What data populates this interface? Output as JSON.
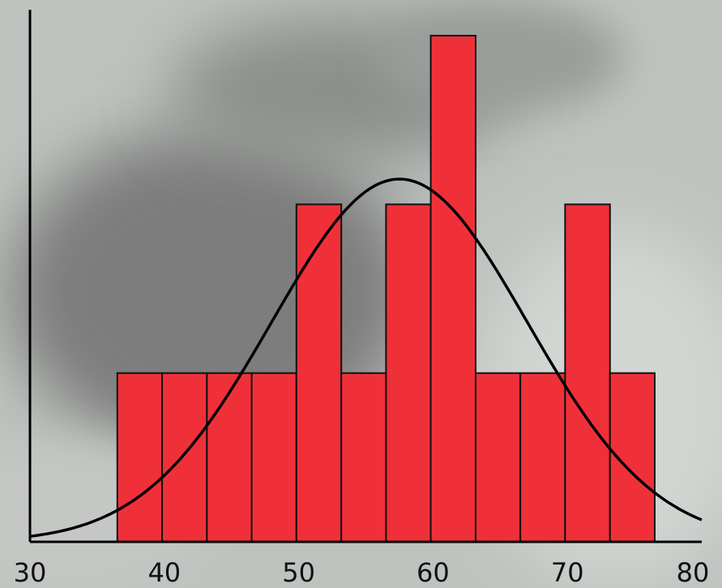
{
  "chart_data": {
    "type": "bar",
    "title": "",
    "xlabel": "",
    "ylabel": "",
    "bin_edges": [
      36.5,
      39.83,
      43.17,
      46.5,
      49.83,
      53.17,
      56.5,
      59.83,
      63.17,
      66.5,
      69.83,
      73.17,
      76.5
    ],
    "values": [
      1,
      1,
      1,
      1,
      2,
      1,
      2,
      3,
      1,
      1,
      2,
      1
    ],
    "xlim": [
      30,
      80
    ],
    "ylim": [
      0,
      3.1
    ],
    "x_ticks": [
      "30",
      "40",
      "50",
      "60",
      "70",
      "80"
    ],
    "curve": {
      "type": "normal",
      "mean": 57.5,
      "sd": 9.5,
      "peak": 2.15
    },
    "grid": false,
    "bar_color": "#f03039",
    "bar_edge_color": "#111111",
    "curve_color": "#000000"
  }
}
